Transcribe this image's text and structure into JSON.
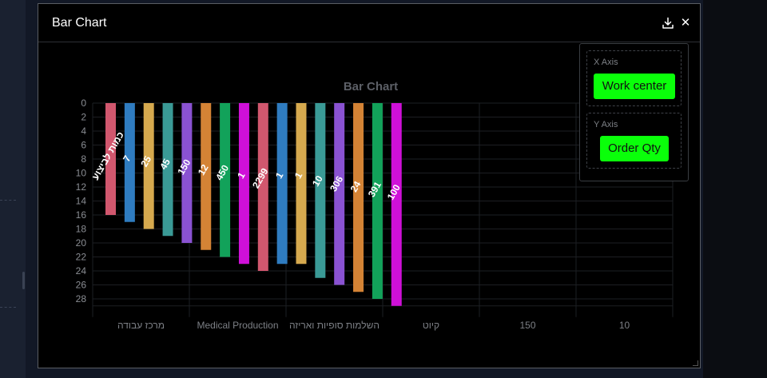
{
  "modal": {
    "title": "Bar Chart"
  },
  "axis_panel": {
    "x_label": "X Axis",
    "x_value": "Work center",
    "y_label": "Y Axis",
    "y_value": "Order Qty",
    "accent": "#0aff0a"
  },
  "chart_data": {
    "type": "bar",
    "title": "Bar Chart",
    "orientation": "vertical",
    "y_inverted": true,
    "ylim": [
      0,
      29
    ],
    "y_ticks": [
      0,
      2,
      4,
      6,
      8,
      10,
      12,
      14,
      16,
      18,
      20,
      22,
      24,
      26,
      28
    ],
    "x_tick_labels": [
      "מרכז עבודה",
      "Medical Production",
      "השלמות סופיות ואריזה",
      "קיוט",
      "150",
      "10"
    ],
    "grid": true,
    "bars": [
      {
        "value": 16,
        "label": "כמות לביצוע",
        "color": "#d1576e"
      },
      {
        "value": 17,
        "label": "7",
        "color": "#2f7cc0"
      },
      {
        "value": 18,
        "label": "25",
        "color": "#d6a94e"
      },
      {
        "value": 19,
        "label": "45",
        "color": "#3a9a96"
      },
      {
        "value": 20,
        "label": "150",
        "color": "#8a52d2"
      },
      {
        "value": 21,
        "label": "12",
        "color": "#d48335"
      },
      {
        "value": 22,
        "label": "450",
        "color": "#12a25a"
      },
      {
        "value": 23,
        "label": "1",
        "color": "#cf10d8"
      },
      {
        "value": 24,
        "label": "2299",
        "color": "#d1576e"
      },
      {
        "value": 23,
        "label": "1",
        "color": "#2f7cc0"
      },
      {
        "value": 23,
        "label": "1",
        "color": "#d6a94e"
      },
      {
        "value": 25,
        "label": "10",
        "color": "#3a9a96"
      },
      {
        "value": 26,
        "label": "306",
        "color": "#8a52d2"
      },
      {
        "value": 27,
        "label": "24",
        "color": "#d48335"
      },
      {
        "value": 28,
        "label": "391",
        "color": "#12a25a"
      },
      {
        "value": 29,
        "label": "100",
        "color": "#cf10d8"
      }
    ]
  }
}
